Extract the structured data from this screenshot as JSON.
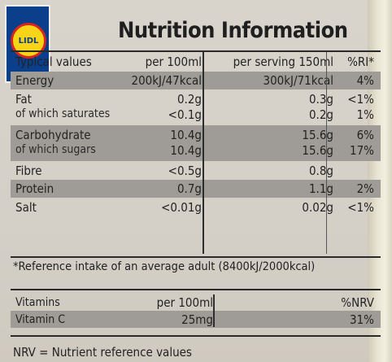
{
  "logo": {
    "text": "LIDL",
    "colors": {
      "blue": "#0b3f8c",
      "yellow": "#f7d417",
      "red": "#d9261c"
    }
  },
  "title": "Nutrition Information",
  "headers": {
    "label": "Typical values",
    "per100": "per 100ml",
    "perServing": "per serving 150ml",
    "ri": "%RI*"
  },
  "rows": [
    {
      "label": "Energy",
      "per100": "200kJ/47kcal",
      "perServing": "300kJ/71kcal",
      "ri": "4%"
    },
    {
      "label": "Fat",
      "sublabel": "of which saturates",
      "per100": "0.2g",
      "per100sub": "<0.1g",
      "perServing": "0.3g",
      "perServingSub": "0.2g",
      "ri": "<1%",
      "riSub": "1%"
    },
    {
      "label": "Carbohydrate",
      "sublabel": "of which sugars",
      "per100": "10.4g",
      "per100sub": "10.4g",
      "perServing": "15.6g",
      "perServingSub": "15.6g",
      "ri": "6%",
      "riSub": "17%"
    },
    {
      "label": "Fibre",
      "per100": "<0.5g",
      "perServing": "0.8g",
      "ri": ""
    },
    {
      "label": "Protein",
      "per100": "0.7g",
      "perServing": "1.1g",
      "ri": "2%"
    },
    {
      "label": "Salt",
      "per100": "<0.01g",
      "perServing": "0.02g",
      "ri": "<1%"
    }
  ],
  "reference": "*Reference intake of an average adult (8400kJ/2000kcal)",
  "vitamins": {
    "header": {
      "label": "Vitamins",
      "per100": "per 100ml",
      "nrv": "%NRV"
    },
    "row": {
      "label": "Vitamin C",
      "per100": "25mg",
      "nrv": "31%"
    }
  },
  "footnote": "NRV = Nutrient reference values"
}
